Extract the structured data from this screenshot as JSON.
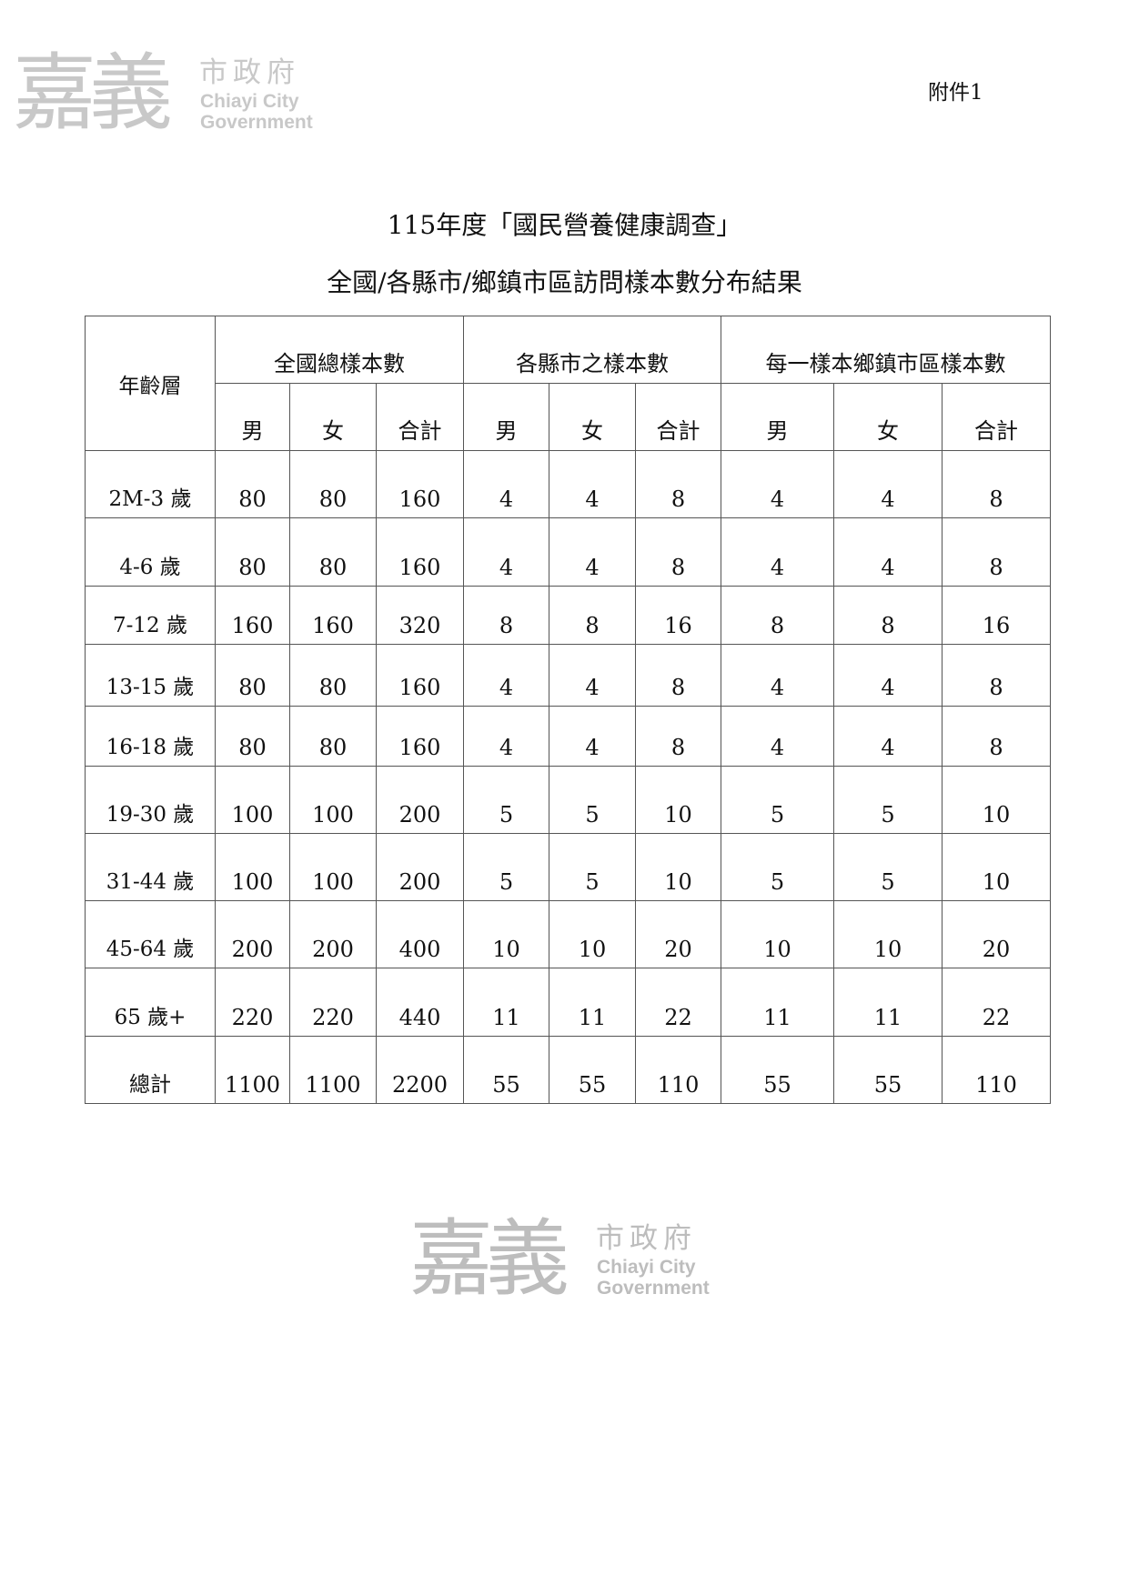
{
  "logo": {
    "chinese_big": "嘉義",
    "chinese_small": "市政府",
    "english_line1": "Chiayi City",
    "english_line2": "Government"
  },
  "attachment_label": "附件1",
  "title": "115年度「國民營養健康調查」",
  "subtitle": "全國/各縣市/鄉鎮市區訪問樣本數分布結果",
  "table": {
    "age_header": "年齡層",
    "groups": [
      "全國總樣本數",
      "各縣市之樣本數",
      "每一樣本鄉鎮市區樣本數"
    ],
    "subheaders": [
      "男",
      "女",
      "合計",
      "男",
      "女",
      "合計",
      "男",
      "女",
      "合計"
    ],
    "rows": [
      {
        "age": "2M-3 歲",
        "values": [
          "80",
          "80",
          "160",
          "4",
          "4",
          "8",
          "4",
          "4",
          "8"
        ]
      },
      {
        "age": "4-6 歲",
        "values": [
          "80",
          "80",
          "160",
          "4",
          "4",
          "8",
          "4",
          "4",
          "8"
        ]
      },
      {
        "age": "7-12 歲",
        "values": [
          "160",
          "160",
          "320",
          "8",
          "8",
          "16",
          "8",
          "8",
          "16"
        ]
      },
      {
        "age": "13-15 歲",
        "values": [
          "80",
          "80",
          "160",
          "4",
          "4",
          "8",
          "4",
          "4",
          "8"
        ]
      },
      {
        "age": "16-18 歲",
        "values": [
          "80",
          "80",
          "160",
          "4",
          "4",
          "8",
          "4",
          "4",
          "8"
        ]
      },
      {
        "age": "19-30 歲",
        "values": [
          "100",
          "100",
          "200",
          "5",
          "5",
          "10",
          "5",
          "5",
          "10"
        ]
      },
      {
        "age": "31-44 歲",
        "values": [
          "100",
          "100",
          "200",
          "5",
          "5",
          "10",
          "5",
          "5",
          "10"
        ]
      },
      {
        "age": "45-64 歲",
        "values": [
          "200",
          "200",
          "400",
          "10",
          "10",
          "20",
          "10",
          "10",
          "20"
        ]
      },
      {
        "age": "65 歲+",
        "values": [
          "220",
          "220",
          "440",
          "11",
          "11",
          "22",
          "11",
          "11",
          "22"
        ]
      },
      {
        "age": "總計",
        "values": [
          "1100",
          "1100",
          "2200",
          "55",
          "55",
          "110",
          "55",
          "55",
          "110"
        ]
      }
    ]
  }
}
